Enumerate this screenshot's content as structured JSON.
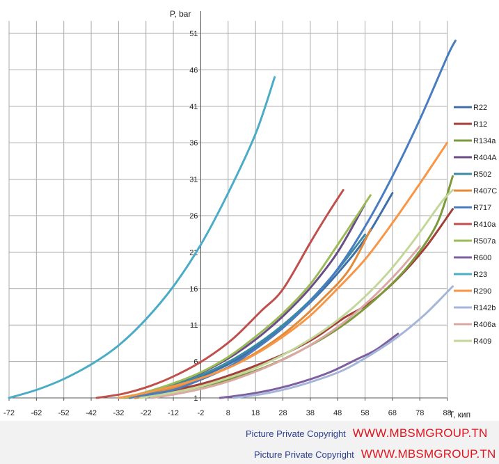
{
  "chart_data": {
    "type": "line",
    "xlabel": "T, кип",
    "ylabel": "P, bar",
    "xlim": [
      -72,
      93
    ],
    "ylim": [
      1,
      54
    ],
    "x_ticks": [
      -72,
      -62,
      -52,
      -42,
      -32,
      -22,
      -12,
      -2,
      8,
      18,
      28,
      38,
      48,
      58,
      68,
      78,
      88
    ],
    "y_ticks": [
      1,
      6,
      11,
      16,
      21,
      26,
      31,
      36,
      41,
      46,
      51
    ],
    "grid": true,
    "legend_position": "right",
    "series": [
      {
        "name": "R22",
        "color": "#3f6fa8",
        "points": [
          [
            -28,
            1
          ],
          [
            -20,
            1.6
          ],
          [
            -12,
            2.5
          ],
          [
            -2,
            3.9
          ],
          [
            8,
            5.6
          ],
          [
            18,
            7.9
          ],
          [
            28,
            10.8
          ],
          [
            38,
            14.1
          ],
          [
            48,
            18.1
          ],
          [
            58,
            22.8
          ],
          [
            68,
            29.1
          ]
        ]
      },
      {
        "name": "R12",
        "color": "#a23f3a",
        "points": [
          [
            -30,
            1
          ],
          [
            -20,
            1.5
          ],
          [
            -10,
            2.2
          ],
          [
            0,
            3.1
          ],
          [
            10,
            4.3
          ],
          [
            20,
            5.7
          ],
          [
            30,
            7.3
          ],
          [
            40,
            9.3
          ],
          [
            50,
            11.9
          ],
          [
            60,
            14.1
          ],
          [
            70,
            17.4
          ],
          [
            80,
            21.6
          ],
          [
            90,
            26.9
          ]
        ]
      },
      {
        "name": "R134a",
        "color": "#7c9a3c",
        "points": [
          [
            -26,
            1
          ],
          [
            -16,
            1.5
          ],
          [
            -6,
            2.2
          ],
          [
            4,
            3.1
          ],
          [
            14,
            4.2
          ],
          [
            24,
            5.6
          ],
          [
            34,
            7.4
          ],
          [
            44,
            9.5
          ],
          [
            54,
            12.1
          ],
          [
            64,
            15.3
          ],
          [
            74,
            19.2
          ],
          [
            84,
            24.7
          ],
          [
            90,
            31.4
          ]
        ]
      },
      {
        "name": "R404A",
        "color": "#6a4c86",
        "points": [
          [
            -28,
            1
          ],
          [
            -20,
            1.9
          ],
          [
            -12,
            2.8
          ],
          [
            -2,
            4.4
          ],
          [
            8,
            6.4
          ],
          [
            18,
            9.0
          ],
          [
            28,
            12.2
          ],
          [
            38,
            16.1
          ],
          [
            48,
            21.0
          ],
          [
            58,
            27.6
          ]
        ]
      },
      {
        "name": "R502",
        "color": "#3a8ba3",
        "points": [
          [
            -28,
            1
          ],
          [
            -20,
            1.8
          ],
          [
            -12,
            2.7
          ],
          [
            -2,
            4.1
          ],
          [
            8,
            5.9
          ],
          [
            18,
            8.2
          ],
          [
            28,
            11.0
          ],
          [
            38,
            14.4
          ],
          [
            48,
            18.6
          ],
          [
            58,
            23.4
          ]
        ]
      },
      {
        "name": "R407C",
        "color": "#e08a3a",
        "points": [
          [
            -26,
            1
          ],
          [
            -18,
            1.7
          ],
          [
            -8,
            2.8
          ],
          [
            2,
            4.2
          ],
          [
            12,
            5.9
          ],
          [
            22,
            8.1
          ],
          [
            32,
            10.9
          ],
          [
            42,
            14.4
          ],
          [
            52,
            18.5
          ],
          [
            60,
            24.1
          ]
        ]
      },
      {
        "name": "R717",
        "color": "#4a7cc0",
        "points": [
          [
            -32,
            1
          ],
          [
            -22,
            1.4
          ],
          [
            -12,
            2.1
          ],
          [
            -2,
            3.5
          ],
          [
            8,
            5.2
          ],
          [
            18,
            7.7
          ],
          [
            28,
            10.6
          ],
          [
            38,
            14.2
          ],
          [
            48,
            18.7
          ],
          [
            58,
            24.5
          ],
          [
            68,
            31.4
          ],
          [
            78,
            39.2
          ],
          [
            88,
            47.8
          ],
          [
            91,
            50.0
          ]
        ]
      },
      {
        "name": "R410a",
        "color": "#c0504d",
        "points": [
          [
            -40,
            1
          ],
          [
            -30,
            1.6
          ],
          [
            -20,
            2.7
          ],
          [
            -10,
            4.3
          ],
          [
            0,
            6.4
          ],
          [
            10,
            9.2
          ],
          [
            20,
            12.9
          ],
          [
            28,
            15.9
          ],
          [
            38,
            22.3
          ],
          [
            44,
            26.0
          ],
          [
            50,
            29.5
          ]
        ]
      },
      {
        "name": "R507a",
        "color": "#9bbb59",
        "points": [
          [
            -30,
            1
          ],
          [
            -22,
            1.8
          ],
          [
            -12,
            3.0
          ],
          [
            -2,
            4.5
          ],
          [
            8,
            6.6
          ],
          [
            18,
            9.4
          ],
          [
            28,
            12.6
          ],
          [
            38,
            16.6
          ],
          [
            48,
            22.0
          ],
          [
            60,
            28.8
          ]
        ]
      },
      {
        "name": "R600",
        "color": "#7e60a0",
        "points": [
          [
            5,
            1
          ],
          [
            15,
            1.5
          ],
          [
            25,
            2.2
          ],
          [
            35,
            3.2
          ],
          [
            45,
            4.5
          ],
          [
            55,
            6.3
          ],
          [
            62,
            7.6
          ],
          [
            70,
            9.8
          ]
        ]
      },
      {
        "name": "R23",
        "color": "#4bacc6",
        "points": [
          [
            -72,
            1
          ],
          [
            -62,
            2.1
          ],
          [
            -52,
            3.6
          ],
          [
            -42,
            5.6
          ],
          [
            -32,
            8.2
          ],
          [
            -22,
            11.8
          ],
          [
            -12,
            16.3
          ],
          [
            -2,
            22.0
          ],
          [
            8,
            29.1
          ],
          [
            18,
            37.2
          ],
          [
            25,
            45.0
          ]
        ]
      },
      {
        "name": "R290",
        "color": "#f79646",
        "points": [
          [
            -32,
            1
          ],
          [
            -22,
            1.7
          ],
          [
            -12,
            2.6
          ],
          [
            -2,
            3.7
          ],
          [
            8,
            5.1
          ],
          [
            18,
            7.0
          ],
          [
            28,
            9.4
          ],
          [
            38,
            12.3
          ],
          [
            48,
            16.0
          ],
          [
            58,
            20.0
          ],
          [
            68,
            25.0
          ],
          [
            78,
            30.4
          ],
          [
            88,
            36.0
          ]
        ]
      },
      {
        "name": "R142b",
        "color": "#a5b6d9",
        "points": [
          [
            10,
            1
          ],
          [
            20,
            1.5
          ],
          [
            30,
            2.3
          ],
          [
            40,
            3.4
          ],
          [
            50,
            4.8
          ],
          [
            60,
            6.9
          ],
          [
            70,
            9.4
          ],
          [
            80,
            12.5
          ],
          [
            90,
            16.3
          ]
        ]
      },
      {
        "name": "R406a",
        "color": "#dba9a4",
        "points": [
          [
            -20,
            1
          ],
          [
            -10,
            1.6
          ],
          [
            0,
            2.4
          ],
          [
            10,
            3.5
          ],
          [
            20,
            4.9
          ],
          [
            30,
            6.6
          ],
          [
            40,
            8.7
          ],
          [
            50,
            11.3
          ],
          [
            60,
            14.5
          ],
          [
            70,
            18.3
          ],
          [
            78,
            21.8
          ]
        ]
      },
      {
        "name": "R409",
        "color": "#c4d79b",
        "points": [
          [
            -24,
            1
          ],
          [
            -14,
            1.6
          ],
          [
            -4,
            2.4
          ],
          [
            6,
            3.5
          ],
          [
            16,
            4.8
          ],
          [
            26,
            6.5
          ],
          [
            36,
            8.6
          ],
          [
            46,
            11.1
          ],
          [
            56,
            14.2
          ],
          [
            66,
            18.0
          ],
          [
            76,
            22.7
          ],
          [
            86,
            27.9
          ],
          [
            90,
            29.5
          ]
        ]
      }
    ]
  },
  "footer": {
    "line1_copyright": "Picture Private Copyright",
    "line1_site": "WWW.MBSMGROUP.TN",
    "line2_copyright": "Picture Private Copyright",
    "line2_site": "WWW.MBSMGROUP.TN"
  }
}
